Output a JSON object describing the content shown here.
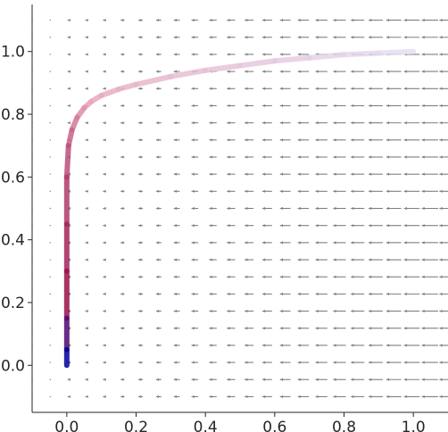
{
  "chart_data": {
    "type": "vector_field",
    "title": "",
    "xlabel": "",
    "ylabel": "",
    "xlim": [
      -0.1,
      1.1
    ],
    "ylim": [
      -0.15,
      1.15
    ],
    "x_ticks": [
      "0.0",
      "0.2",
      "0.4",
      "0.6",
      "0.8",
      "1.0"
    ],
    "y_ticks": [
      "0.0",
      "0.2",
      "0.4",
      "0.6",
      "0.8",
      "1.0"
    ],
    "grid": false,
    "legend": "none",
    "field": {
      "description_values": "arrows point in -x direction with magnitude growing with x",
      "x_range": [
        -0.1,
        1.1
      ],
      "y_range": [
        -0.1,
        1.1
      ],
      "columns": 24,
      "rows": 23,
      "arrow_color": "#808080"
    },
    "trajectory": {
      "x": [
        1.0,
        0.9,
        0.8,
        0.7,
        0.6,
        0.5,
        0.4,
        0.3,
        0.2,
        0.15,
        0.1,
        0.07,
        0.05,
        0.03,
        0.015,
        0.005,
        0.0,
        0.0,
        0.0,
        0.0,
        0.0,
        0.0
      ],
      "y": [
        1.0,
        0.995,
        0.99,
        0.98,
        0.97,
        0.955,
        0.94,
        0.92,
        0.895,
        0.88,
        0.86,
        0.84,
        0.82,
        0.79,
        0.75,
        0.7,
        0.6,
        0.45,
        0.3,
        0.15,
        0.05,
        0.0
      ],
      "color_start": "#e4ddf2",
      "color_mid": "#e8a4b8",
      "color_low": "#9a0f4a",
      "color_end": "#00009a"
    }
  }
}
